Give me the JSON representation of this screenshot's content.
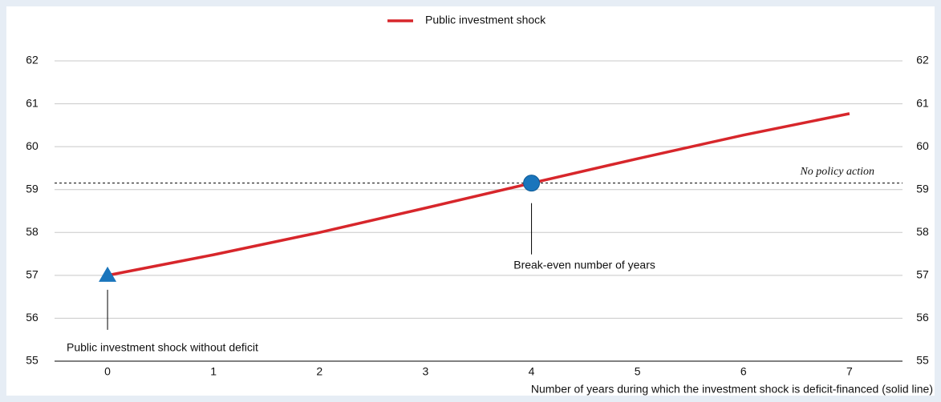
{
  "chart_data": {
    "type": "line",
    "x_label": "Number of years during which the investment shock is deficit-financed (solid line)",
    "x": [
      0,
      1,
      2,
      3,
      4,
      5,
      6,
      7
    ],
    "series": [
      {
        "name": "Public investment shock",
        "color": "#d7262b",
        "values": [
          57.0,
          57.48,
          58.0,
          58.57,
          59.15,
          59.72,
          60.27,
          60.77
        ]
      }
    ],
    "xlim": [
      -0.5,
      7.5
    ],
    "xticks": [
      0,
      1,
      2,
      3,
      4,
      5,
      6,
      7
    ],
    "ylim": [
      55,
      62
    ],
    "yticks": [
      55,
      56,
      57,
      58,
      59,
      60,
      61,
      62
    ],
    "grid": true,
    "reference_line": {
      "label": "No policy action",
      "value": 59.15
    },
    "annotations": [
      {
        "text": "Public investment shock without deficit",
        "marker": "triangle",
        "color": "#1a75bc"
      },
      {
        "text": "Break-even number of years",
        "marker": "circle",
        "color": "#1a75bc"
      }
    ]
  }
}
